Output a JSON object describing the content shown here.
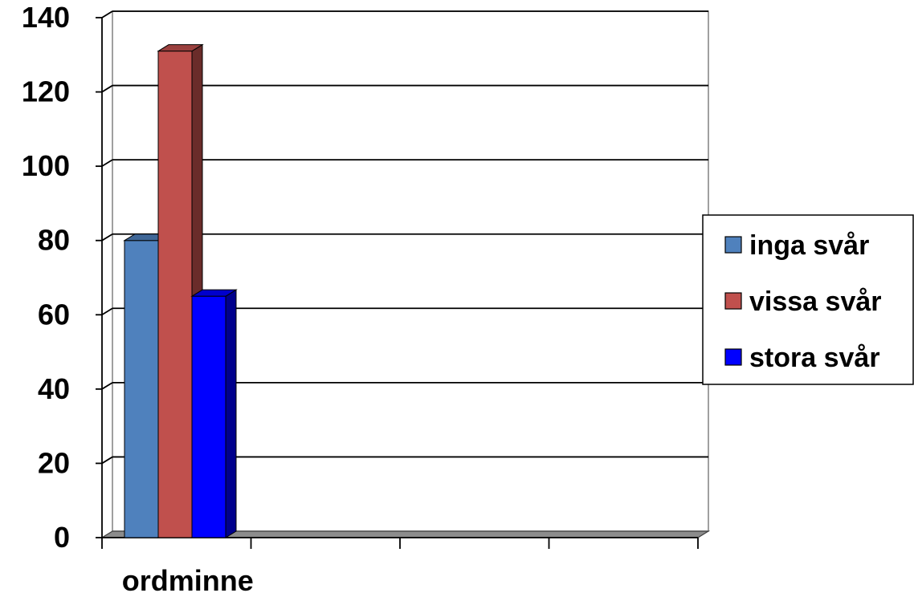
{
  "chart_data": {
    "type": "bar",
    "style": "3d-clustered-column",
    "categories": [
      "ordminne",
      "",
      "",
      ""
    ],
    "series": [
      {
        "name": "inga svår",
        "color": "#4f81bd",
        "values": [
          80,
          null,
          null,
          null
        ]
      },
      {
        "name": "vissa svår",
        "color": "#c0504d",
        "values": [
          131,
          null,
          null,
          null
        ]
      },
      {
        "name": "stora svår",
        "color": "#0000ff",
        "values": [
          65,
          null,
          null,
          null
        ]
      }
    ],
    "ylim": [
      0,
      140
    ],
    "yticks": [
      0,
      20,
      40,
      60,
      80,
      100,
      120,
      140
    ],
    "ytick_labels": [
      "0",
      "20",
      "40",
      "60",
      "80",
      "100",
      "120",
      "140"
    ],
    "grid": true,
    "legend_position": "right",
    "title": "",
    "xlabel": "",
    "ylabel": ""
  }
}
